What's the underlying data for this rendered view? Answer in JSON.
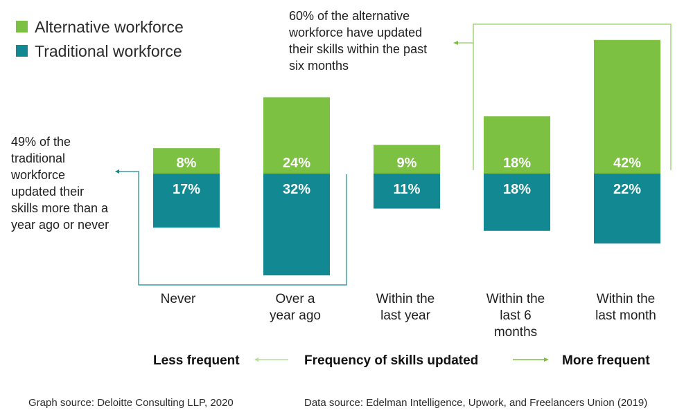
{
  "chart_data": {
    "type": "bar",
    "subtype": "diverging-stacked",
    "categories": [
      [
        "Never"
      ],
      [
        "Over a",
        "year ago"
      ],
      [
        "Within the",
        "last year"
      ],
      [
        "Within the",
        "last 6",
        "months"
      ],
      [
        "Within the",
        "last month"
      ]
    ],
    "series": [
      {
        "name": "Alternative workforce",
        "values": [
          8,
          24,
          9,
          18,
          42
        ],
        "color": "#7dc142",
        "direction": "up"
      },
      {
        "name": "Traditional workforce",
        "values": [
          17,
          32,
          11,
          18,
          22
        ],
        "color": "#128992",
        "direction": "down"
      }
    ],
    "value_suffix": "%",
    "annotations": {
      "traditional": [
        "49% of the",
        "traditional",
        "workforce",
        "updated their",
        "skills more than a",
        "year ago or never"
      ],
      "alternative": [
        "60% of the alternative",
        "workforce have updated",
        "their skills within the past",
        "six months"
      ]
    },
    "axis": {
      "left": "Less frequent",
      "center": "Frequency of skills updated",
      "right": "More frequent"
    },
    "sources": {
      "graph": "Graph source: Deloitte Consulting LLP, 2020",
      "data": "Data source: Edelman Intelligence, Upwork, and Freelancers Union (2019)"
    }
  }
}
